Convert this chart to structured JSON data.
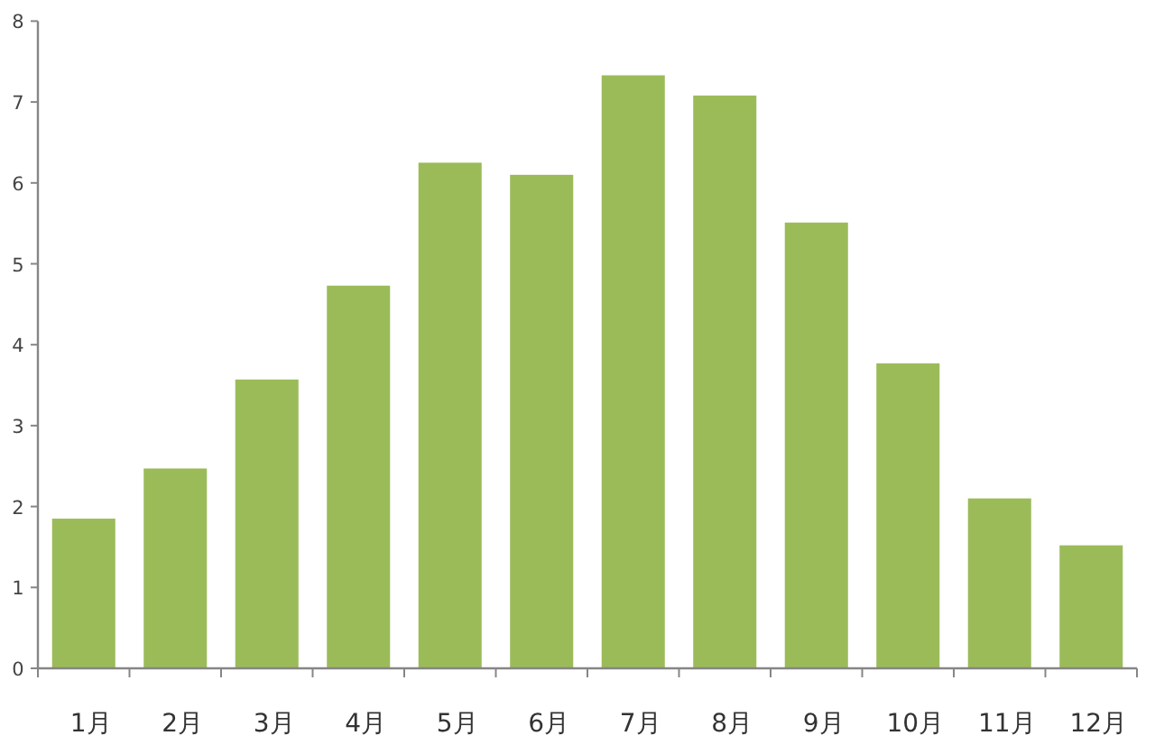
{
  "chart_data": {
    "type": "bar",
    "categories": [
      "1月",
      "2月",
      "3月",
      "4月",
      "5月",
      "6月",
      "7月",
      "8月",
      "9月",
      "10月",
      "11月",
      "12月"
    ],
    "values": [
      1.85,
      2.47,
      3.57,
      4.73,
      6.25,
      6.1,
      7.33,
      7.08,
      5.51,
      3.77,
      2.1,
      1.52
    ],
    "color": "#9bbb59",
    "ylim": [
      0,
      8
    ],
    "yticks": [
      0,
      1,
      2,
      3,
      4,
      5,
      6,
      7,
      8
    ]
  }
}
